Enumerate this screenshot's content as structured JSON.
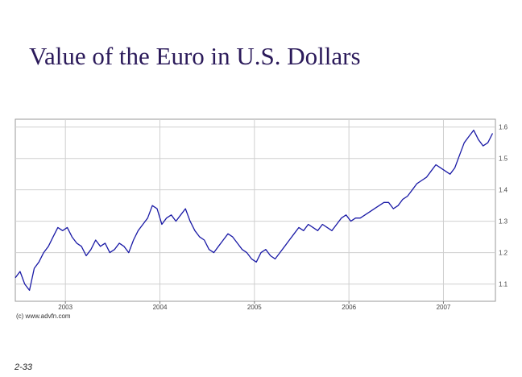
{
  "slide": {
    "title": "Value of the Euro in U.S. Dollars",
    "credit": "(c) www.advfn.com",
    "slide_number": "2-33"
  },
  "chart_data": {
    "type": "line",
    "title": "",
    "xlabel": "",
    "ylabel": "",
    "x_ticks": [
      {
        "label": "2003",
        "x": 2003.0
      },
      {
        "label": "2004",
        "x": 2004.0
      },
      {
        "label": "2005",
        "x": 2005.0
      },
      {
        "label": "2006",
        "x": 2006.0
      },
      {
        "label": "2007",
        "x": 2007.0
      }
    ],
    "y_ticks": [
      {
        "label": "1.6",
        "y": 1.6
      },
      {
        "label": "1.5",
        "y": 1.5
      },
      {
        "label": "1.4",
        "y": 1.4
      },
      {
        "label": "1.3",
        "y": 1.3
      },
      {
        "label": "1.2",
        "y": 1.2
      },
      {
        "label": "1.1",
        "y": 1.1
      }
    ],
    "xlim": [
      2002.47,
      2007.55
    ],
    "ylim": [
      1.045,
      1.625
    ],
    "grid": true,
    "y_axis_side": "right",
    "line_color": "#1a1aa6",
    "series": [
      {
        "x": [
          2002.47,
          2002.52,
          2002.57,
          2002.62,
          2002.67,
          2002.72,
          2002.77,
          2002.82,
          2002.87,
          2002.92,
          2002.97,
          2003.02,
          2003.07,
          2003.12,
          2003.17,
          2003.22,
          2003.27,
          2003.32,
          2003.37,
          2003.42,
          2003.47,
          2003.52,
          2003.57,
          2003.62,
          2003.67,
          2003.72,
          2003.77,
          2003.82,
          2003.87,
          2003.92,
          2003.97,
          2004.02,
          2004.07,
          2004.12,
          2004.17,
          2004.22,
          2004.27,
          2004.32,
          2004.37,
          2004.42,
          2004.47,
          2004.52,
          2004.57,
          2004.62,
          2004.67,
          2004.72,
          2004.77,
          2004.82,
          2004.87,
          2004.92,
          2004.97,
          2005.02,
          2005.07,
          2005.12,
          2005.17,
          2005.22,
          2005.27,
          2005.32,
          2005.37,
          2005.42,
          2005.47,
          2005.52,
          2005.57,
          2005.62,
          2005.67,
          2005.72,
          2005.77,
          2005.82,
          2005.87,
          2005.92,
          2005.97,
          2006.02,
          2006.07,
          2006.12,
          2006.17,
          2006.22,
          2006.27,
          2006.32,
          2006.37,
          2006.42,
          2006.47,
          2006.52,
          2006.57,
          2006.62,
          2006.67,
          2006.72,
          2006.77,
          2006.82,
          2006.87,
          2006.92,
          2006.97,
          2007.02,
          2007.07,
          2007.12,
          2007.17,
          2007.22,
          2007.27,
          2007.32,
          2007.37,
          2007.42,
          2007.47,
          2007.52
        ],
        "y": [
          1.12,
          1.14,
          1.1,
          1.08,
          1.15,
          1.17,
          1.2,
          1.22,
          1.25,
          1.28,
          1.27,
          1.28,
          1.25,
          1.23,
          1.22,
          1.19,
          1.21,
          1.24,
          1.22,
          1.23,
          1.2,
          1.21,
          1.23,
          1.22,
          1.2,
          1.24,
          1.27,
          1.29,
          1.31,
          1.35,
          1.34,
          1.29,
          1.31,
          1.32,
          1.3,
          1.32,
          1.34,
          1.3,
          1.27,
          1.25,
          1.24,
          1.21,
          1.2,
          1.22,
          1.24,
          1.26,
          1.25,
          1.23,
          1.21,
          1.2,
          1.18,
          1.17,
          1.2,
          1.21,
          1.19,
          1.18,
          1.2,
          1.22,
          1.24,
          1.26,
          1.28,
          1.27,
          1.29,
          1.28,
          1.27,
          1.29,
          1.28,
          1.27,
          1.29,
          1.31,
          1.32,
          1.3,
          1.31,
          1.31,
          1.32,
          1.33,
          1.34,
          1.35,
          1.36,
          1.36,
          1.34,
          1.35,
          1.37,
          1.38,
          1.4,
          1.42,
          1.43,
          1.44,
          1.46,
          1.48,
          1.47,
          1.46,
          1.45,
          1.47,
          1.51,
          1.55,
          1.57,
          1.59,
          1.56,
          1.54,
          1.55,
          1.58
        ]
      }
    ]
  }
}
